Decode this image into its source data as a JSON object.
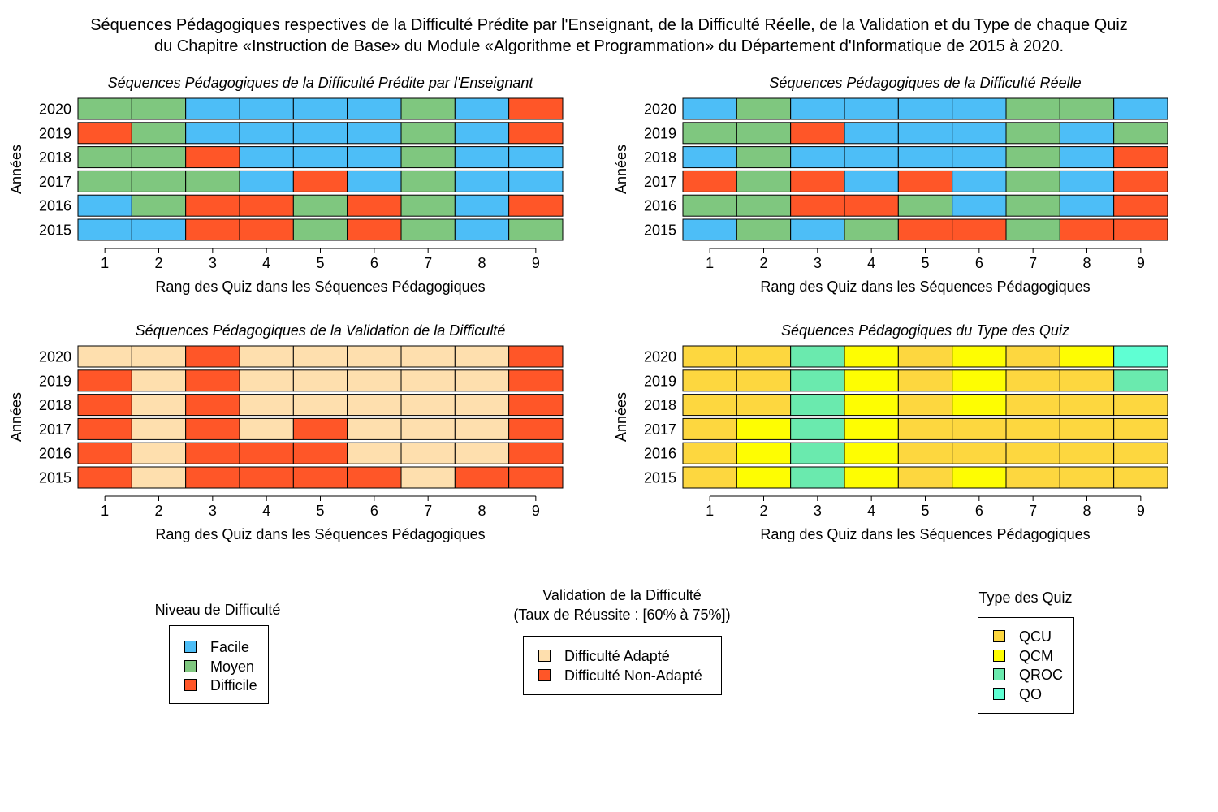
{
  "title": {
    "line1": "Séquences Pédagogiques respectives de la Difficulté Prédite par l'Enseignant, de la Difficulté Réelle, de la Validation et du Type de chaque Quiz",
    "line2": "du Chapitre «Instruction de Base» du Module «Algorithme et Programmation» du Département d'Informatique de 2015 à 2020."
  },
  "colors": {
    "Facile": "#4DBEF7",
    "Moyen": "#7FC77F",
    "Difficile": "#FF5628",
    "Difficulté Adapté": "#FEDFAE",
    "Difficulté Non-Adapté": "#FF5628",
    "QCU": "#FDD73F",
    "QCM": "#FEFD02",
    "QROC": "#6AEAAE",
    "QO": "#5FFFD3"
  },
  "chart_data": [
    {
      "type": "heatmap",
      "title": "Séquences Pédagogiques de la Difficulté Prédite par l'Enseignant",
      "xlabel": "Rang des Quiz dans les Séquences Pédagogiques",
      "ylabel": "Années",
      "x": [
        "1",
        "2",
        "3",
        "4",
        "5",
        "6",
        "7",
        "8",
        "9"
      ],
      "y": [
        "2020",
        "2019",
        "2018",
        "2017",
        "2016",
        "2015"
      ],
      "values": [
        [
          "Moyen",
          "Moyen",
          "Facile",
          "Facile",
          "Facile",
          "Facile",
          "Moyen",
          "Facile",
          "Difficile"
        ],
        [
          "Difficile",
          "Moyen",
          "Facile",
          "Facile",
          "Facile",
          "Facile",
          "Moyen",
          "Facile",
          "Difficile"
        ],
        [
          "Moyen",
          "Moyen",
          "Difficile",
          "Facile",
          "Facile",
          "Facile",
          "Moyen",
          "Facile",
          "Facile"
        ],
        [
          "Moyen",
          "Moyen",
          "Moyen",
          "Facile",
          "Difficile",
          "Facile",
          "Moyen",
          "Facile",
          "Facile"
        ],
        [
          "Facile",
          "Moyen",
          "Difficile",
          "Difficile",
          "Moyen",
          "Difficile",
          "Moyen",
          "Facile",
          "Difficile"
        ],
        [
          "Facile",
          "Facile",
          "Difficile",
          "Difficile",
          "Moyen",
          "Difficile",
          "Moyen",
          "Facile",
          "Moyen"
        ]
      ]
    },
    {
      "type": "heatmap",
      "title": "Séquences Pédagogiques de la Difficulté Réelle",
      "xlabel": "Rang des Quiz dans les Séquences Pédagogiques",
      "ylabel": "Années",
      "x": [
        "1",
        "2",
        "3",
        "4",
        "5",
        "6",
        "7",
        "8",
        "9"
      ],
      "y": [
        "2020",
        "2019",
        "2018",
        "2017",
        "2016",
        "2015"
      ],
      "values": [
        [
          "Facile",
          "Moyen",
          "Facile",
          "Facile",
          "Facile",
          "Facile",
          "Moyen",
          "Moyen",
          "Facile"
        ],
        [
          "Moyen",
          "Moyen",
          "Difficile",
          "Facile",
          "Facile",
          "Facile",
          "Moyen",
          "Facile",
          "Moyen"
        ],
        [
          "Facile",
          "Moyen",
          "Facile",
          "Facile",
          "Facile",
          "Facile",
          "Moyen",
          "Facile",
          "Difficile"
        ],
        [
          "Difficile",
          "Moyen",
          "Difficile",
          "Facile",
          "Difficile",
          "Facile",
          "Moyen",
          "Facile",
          "Difficile"
        ],
        [
          "Moyen",
          "Moyen",
          "Difficile",
          "Difficile",
          "Moyen",
          "Facile",
          "Moyen",
          "Facile",
          "Difficile"
        ],
        [
          "Facile",
          "Moyen",
          "Facile",
          "Moyen",
          "Difficile",
          "Difficile",
          "Moyen",
          "Difficile",
          "Difficile"
        ]
      ]
    },
    {
      "type": "heatmap",
      "title": "Séquences Pédagogiques de la Validation de la Difficulté",
      "xlabel": "Rang des Quiz dans les Séquences Pédagogiques",
      "ylabel": "Années",
      "x": [
        "1",
        "2",
        "3",
        "4",
        "5",
        "6",
        "7",
        "8",
        "9"
      ],
      "y": [
        "2020",
        "2019",
        "2018",
        "2017",
        "2016",
        "2015"
      ],
      "values": [
        [
          "Difficulté Adapté",
          "Difficulté Adapté",
          "Difficulté Non-Adapté",
          "Difficulté Adapté",
          "Difficulté Adapté",
          "Difficulté Adapté",
          "Difficulté Adapté",
          "Difficulté Adapté",
          "Difficulté Non-Adapté"
        ],
        [
          "Difficulté Non-Adapté",
          "Difficulté Adapté",
          "Difficulté Non-Adapté",
          "Difficulté Adapté",
          "Difficulté Adapté",
          "Difficulté Adapté",
          "Difficulté Adapté",
          "Difficulté Adapté",
          "Difficulté Non-Adapté"
        ],
        [
          "Difficulté Non-Adapté",
          "Difficulté Adapté",
          "Difficulté Non-Adapté",
          "Difficulté Adapté",
          "Difficulté Adapté",
          "Difficulté Adapté",
          "Difficulté Adapté",
          "Difficulté Adapté",
          "Difficulté Non-Adapté"
        ],
        [
          "Difficulté Non-Adapté",
          "Difficulté Adapté",
          "Difficulté Non-Adapté",
          "Difficulté Adapté",
          "Difficulté Non-Adapté",
          "Difficulté Adapté",
          "Difficulté Adapté",
          "Difficulté Adapté",
          "Difficulté Non-Adapté"
        ],
        [
          "Difficulté Non-Adapté",
          "Difficulté Adapté",
          "Difficulté Non-Adapté",
          "Difficulté Non-Adapté",
          "Difficulté Non-Adapté",
          "Difficulté Adapté",
          "Difficulté Adapté",
          "Difficulté Adapté",
          "Difficulté Non-Adapté"
        ],
        [
          "Difficulté Non-Adapté",
          "Difficulté Adapté",
          "Difficulté Non-Adapté",
          "Difficulté Non-Adapté",
          "Difficulté Non-Adapté",
          "Difficulté Non-Adapté",
          "Difficulté Adapté",
          "Difficulté Non-Adapté",
          "Difficulté Non-Adapté"
        ]
      ]
    },
    {
      "type": "heatmap",
      "title": "Séquences Pédagogiques du Type des Quiz",
      "xlabel": "Rang des Quiz dans les Séquences Pédagogiques",
      "ylabel": "Années",
      "x": [
        "1",
        "2",
        "3",
        "4",
        "5",
        "6",
        "7",
        "8",
        "9"
      ],
      "y": [
        "2020",
        "2019",
        "2018",
        "2017",
        "2016",
        "2015"
      ],
      "values": [
        [
          "QCU",
          "QCU",
          "QROC",
          "QCM",
          "QCU",
          "QCM",
          "QCU",
          "QCM",
          "QO"
        ],
        [
          "QCU",
          "QCU",
          "QROC",
          "QCM",
          "QCU",
          "QCM",
          "QCU",
          "QCU",
          "QROC"
        ],
        [
          "QCU",
          "QCU",
          "QROC",
          "QCM",
          "QCU",
          "QCM",
          "QCU",
          "QCU",
          "QCU"
        ],
        [
          "QCU",
          "QCM",
          "QROC",
          "QCM",
          "QCU",
          "QCU",
          "QCU",
          "QCU",
          "QCU"
        ],
        [
          "QCU",
          "QCM",
          "QROC",
          "QCM",
          "QCU",
          "QCU",
          "QCU",
          "QCU",
          "QCU"
        ],
        [
          "QCU",
          "QCM",
          "QROC",
          "QCM",
          "QCU",
          "QCM",
          "QCU",
          "QCU",
          "QCU"
        ]
      ]
    }
  ],
  "legends": [
    {
      "title_lines": [
        "Niveau de Difficulté"
      ],
      "items": [
        "Facile",
        "Moyen",
        "Difficile"
      ]
    },
    {
      "title_lines": [
        "Validation de la Difficulté",
        "(Taux de Réussite : [60% à 75%])"
      ],
      "items": [
        "Difficulté Adapté",
        "Difficulté Non-Adapté"
      ]
    },
    {
      "title_lines": [
        "Type des Quiz"
      ],
      "items": [
        "QCU",
        "QCM",
        "QROC",
        "QO"
      ]
    }
  ]
}
